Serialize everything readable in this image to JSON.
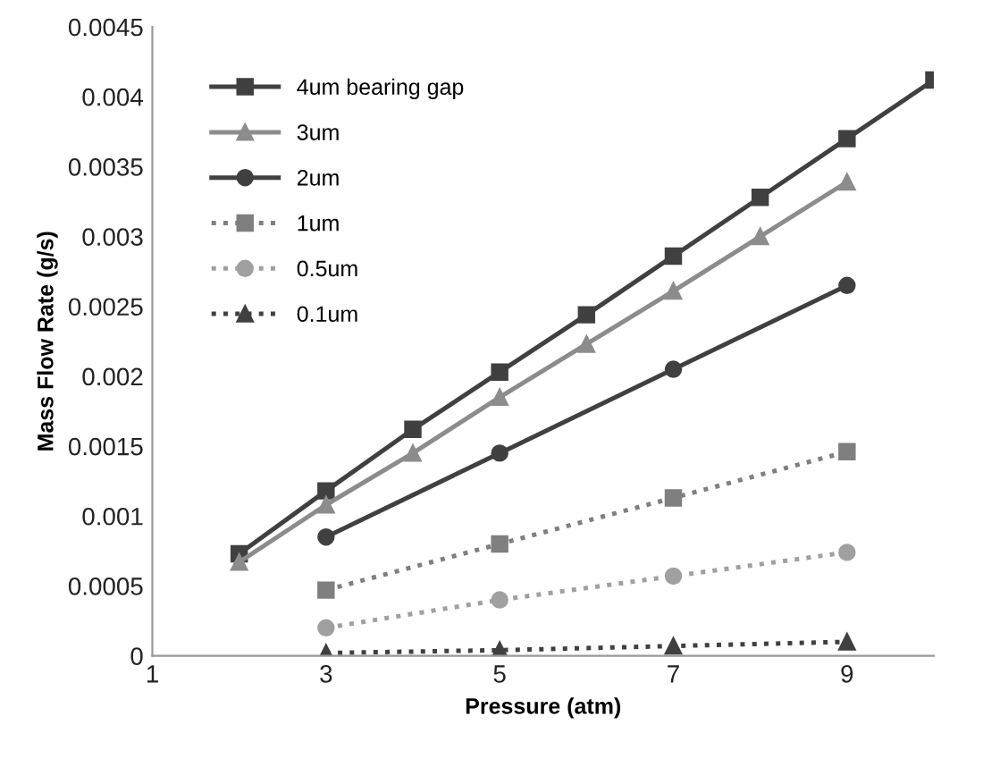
{
  "chart_data": {
    "type": "line",
    "xlabel": "Pressure (atm)",
    "ylabel": "Mass Flow Rate (g/s)",
    "xlim": [
      1,
      10
    ],
    "xticks": [
      1,
      3,
      5,
      7,
      9
    ],
    "ylim": [
      0,
      0.0045
    ],
    "yticks": [
      0,
      0.0005,
      0.001,
      0.0015,
      0.002,
      0.0025,
      0.003,
      0.0035,
      0.004,
      0.0045
    ],
    "grid": false,
    "legend": "top left",
    "series": [
      {
        "name": "4um bearing gap",
        "color": "#404040",
        "marker": "square",
        "line_style": "solid",
        "x": [
          2,
          3,
          4,
          5,
          6,
          7,
          8,
          9,
          10
        ],
        "values": [
          0.00073,
          0.00118,
          0.00162,
          0.00203,
          0.00244,
          0.00286,
          0.00328,
          0.0037,
          0.00412
        ]
      },
      {
        "name": "3um",
        "color": "#8c8c8c",
        "marker": "triangle",
        "line_style": "solid",
        "x": [
          2,
          3,
          4,
          5,
          6,
          7,
          8,
          9
        ],
        "values": [
          0.00067,
          0.00108,
          0.00145,
          0.00185,
          0.00223,
          0.00261,
          0.003,
          0.00339
        ]
      },
      {
        "name": "2um",
        "color": "#404040",
        "marker": "circle",
        "line_style": "solid",
        "x": [
          3,
          5,
          7,
          9
        ],
        "values": [
          0.00085,
          0.00145,
          0.00205,
          0.00265
        ]
      },
      {
        "name": "1um",
        "color": "#7f7f7f",
        "marker": "square",
        "line_style": "dotted",
        "x": [
          3,
          5,
          7,
          9
        ],
        "values": [
          0.00047,
          0.0008,
          0.00113,
          0.00146
        ]
      },
      {
        "name": "0.5um",
        "color": "#a0a0a0",
        "marker": "circle",
        "line_style": "dotted",
        "x": [
          3,
          5,
          7,
          9
        ],
        "values": [
          0.0002,
          0.0004,
          0.00057,
          0.00074
        ]
      },
      {
        "name": "0.1um",
        "color": "#404040",
        "marker": "triangle",
        "line_style": "dotted",
        "x": [
          3,
          5,
          7,
          9
        ],
        "values": [
          2e-05,
          4e-05,
          7e-05,
          0.0001
        ]
      }
    ]
  }
}
